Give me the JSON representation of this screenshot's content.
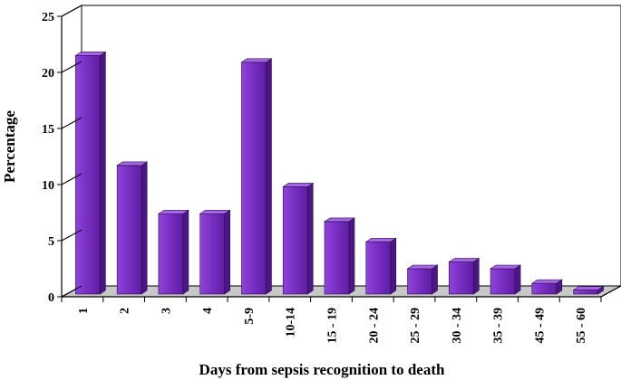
{
  "chart_data": {
    "type": "bar",
    "style": "3d",
    "title": "",
    "xlabel": "Days from sepsis recognition to death",
    "ylabel": "Percentage",
    "ylim": [
      0,
      25
    ],
    "yticks": [
      0,
      5,
      10,
      15,
      20,
      25
    ],
    "categories": [
      "1",
      "2",
      "3",
      "4",
      "5-9",
      "10-14",
      "15 - 19",
      "20 - 24",
      "25 - 29",
      "30 - 34",
      "35 - 39",
      "45 - 49",
      "55 - 60"
    ],
    "values": [
      21.5,
      11.7,
      7.4,
      7.4,
      20.9,
      9.8,
      6.7,
      4.9,
      2.5,
      3.1,
      2.5,
      1.2,
      0.6
    ],
    "colors": {
      "bar_front": "#7a2fc4",
      "bar_side": "#4c1683",
      "bar_top": "#a566e3",
      "floor": "#c8c8c8"
    },
    "legend": "none",
    "grid": false
  }
}
